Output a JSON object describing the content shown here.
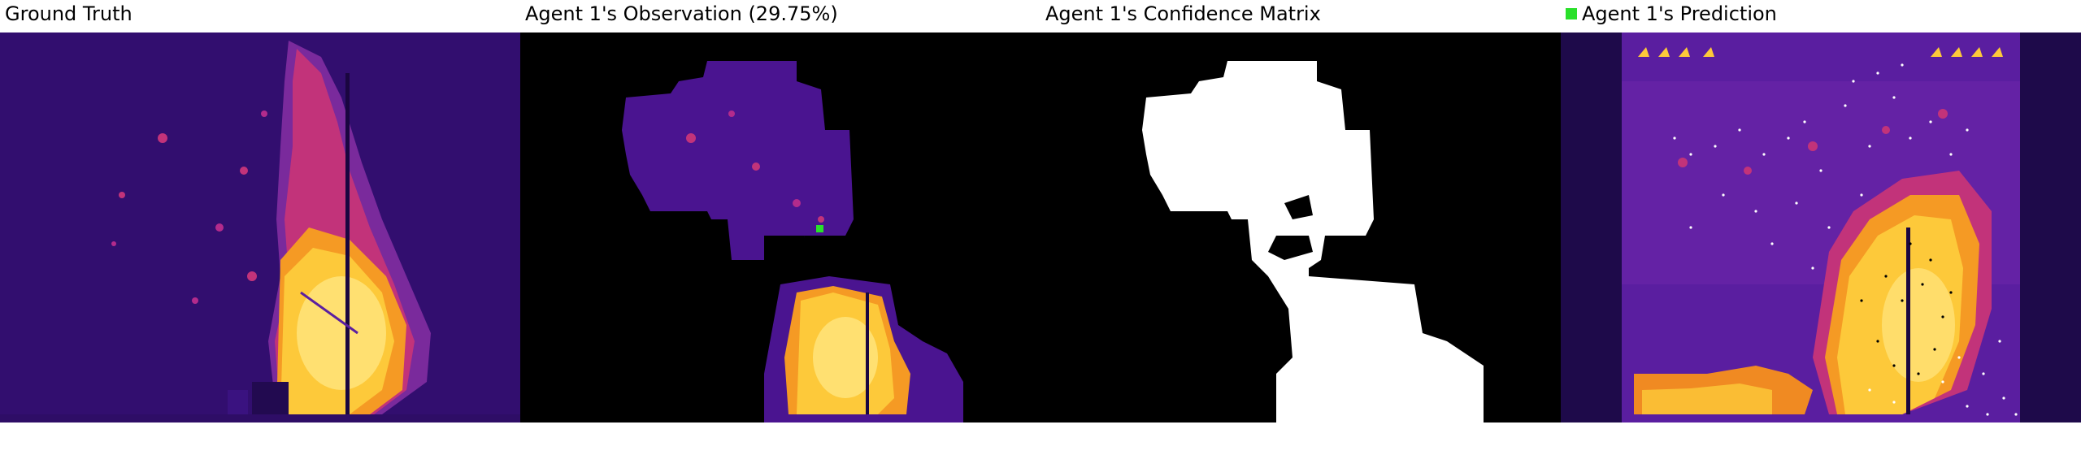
{
  "panels": {
    "ground_truth": {
      "title": "Ground Truth"
    },
    "observation": {
      "title": "Agent 1's Observation (29.75%)"
    },
    "confidence": {
      "title": "Agent 1's Confidence Matrix"
    },
    "prediction": {
      "title": "Agent 1's Prediction",
      "legend_color": "#29e02a"
    }
  },
  "colors": {
    "background_dark": "#2a0a5a",
    "mid_purple": "#5b1fa0",
    "magenta": "#b32b8c",
    "orange": "#f7931e",
    "yellow": "#fde047",
    "mask": "#000000",
    "confidence": "#ffffff"
  }
}
